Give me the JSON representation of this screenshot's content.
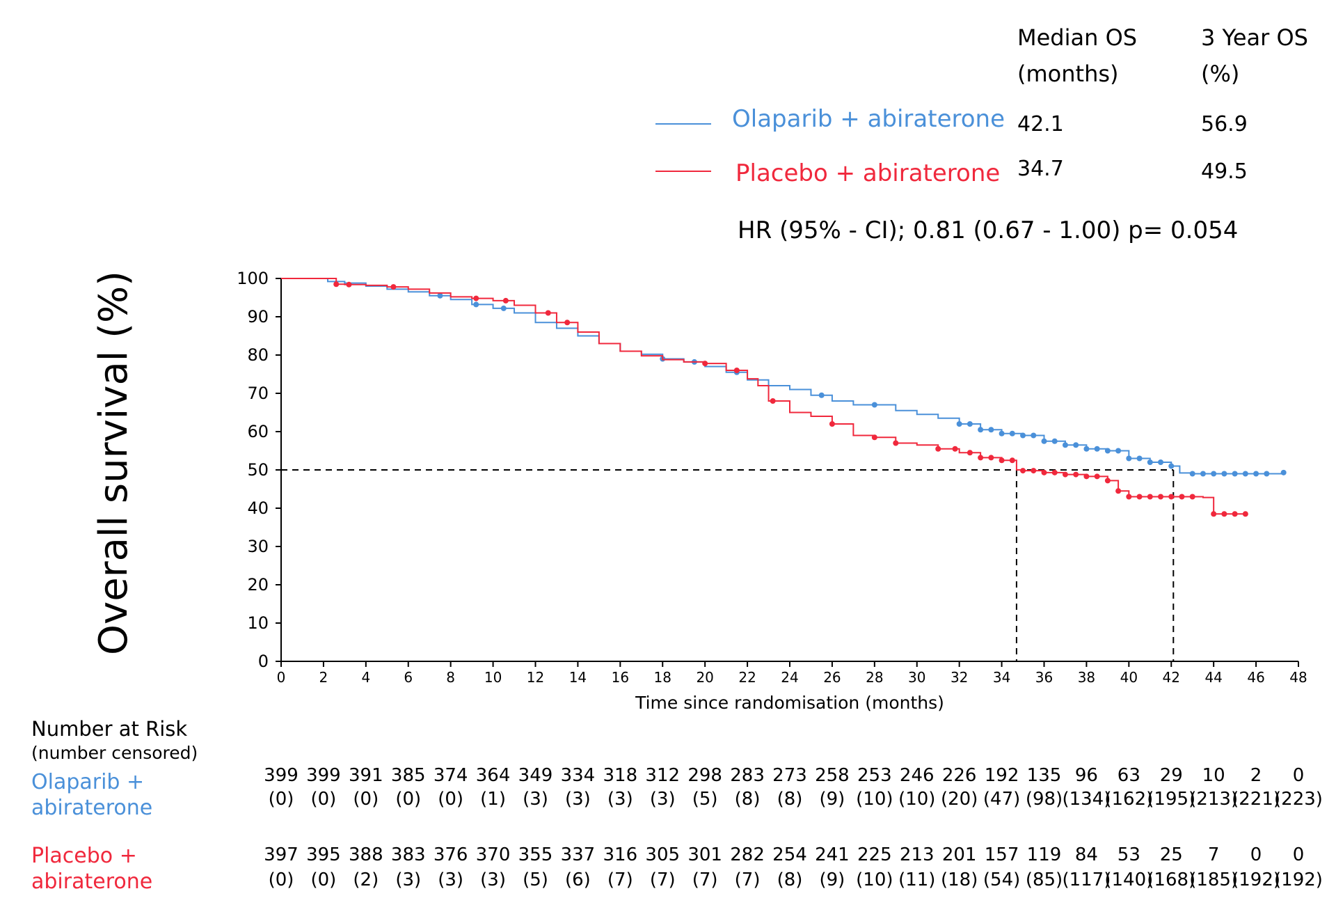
{
  "chart_data": {
    "type": "line",
    "title": "",
    "xlabel": "Time since randomisation (months)",
    "ylabel": "Overall survival (%)",
    "xlim": [
      0,
      48
    ],
    "ylim": [
      0,
      100
    ],
    "x_ticks": [
      "0",
      "2",
      "4",
      "6",
      "8",
      "10",
      "12",
      "14",
      "16",
      "18",
      "20",
      "22",
      "24",
      "26",
      "28",
      "30",
      "32",
      "34",
      "36",
      "38",
      "40",
      "42",
      "44",
      "46",
      "48"
    ],
    "y_ticks": [
      "0",
      "10",
      "20",
      "30",
      "40",
      "50",
      "60",
      "70",
      "80",
      "90",
      "100"
    ],
    "reference_lines": {
      "median_survival_pct": 50,
      "medians_months": [
        34.7,
        42.1
      ],
      "style": "dashed"
    },
    "summary": {
      "header_median": [
        "Median OS",
        "(months)"
      ],
      "header_3yr": [
        "3 Year OS",
        "(%)"
      ],
      "hr_text": "HR (95% - CI); 0.81 (0.67 - 1.00) p= 0.054"
    },
    "series": [
      {
        "name": "Olaparib + abiraterone",
        "color": "#4a90d9",
        "median_os": "42.1",
        "three_year_os": "56.9",
        "x": [
          0,
          2,
          2.2,
          3,
          4,
          5,
          6,
          7,
          8,
          9,
          10,
          11,
          12,
          13,
          14,
          15,
          16,
          17,
          18,
          19,
          20,
          21,
          22,
          23,
          24,
          25,
          26,
          27,
          28,
          29,
          30,
          31,
          32,
          33,
          34,
          35,
          36,
          37,
          38,
          39,
          40,
          41,
          42,
          42.4,
          43,
          44,
          45,
          46,
          47.3
        ],
        "y": [
          100,
          100,
          99.2,
          98.8,
          98,
          97.2,
          96.5,
          95.5,
          94.5,
          93.2,
          92.2,
          91,
          88.5,
          87,
          85,
          83,
          81,
          80.2,
          79,
          78.2,
          77,
          75.5,
          73.5,
          72,
          71,
          69.5,
          68,
          67,
          67,
          65.5,
          64.5,
          63.5,
          62,
          60.5,
          59.5,
          59,
          57.5,
          56.5,
          55.5,
          55,
          53,
          52,
          51,
          49.2,
          49,
          49,
          49,
          49,
          49.3
        ],
        "censor_x": [
          7.5,
          9.2,
          10.5,
          18,
          19.5,
          21.5,
          25.5,
          28,
          32,
          32.5,
          33,
          33.5,
          34,
          34.5,
          35,
          35.5,
          36,
          36.5,
          37,
          37.5,
          38,
          38.5,
          39,
          39.5,
          40,
          40.5,
          41,
          41.5,
          42,
          43,
          43.5,
          44,
          44.5,
          45,
          45.5,
          46,
          46.5,
          47.3
        ],
        "risk_n": [
          "399",
          "399",
          "391",
          "385",
          "374",
          "364",
          "349",
          "334",
          "318",
          "312",
          "298",
          "283",
          "273",
          "258",
          "253",
          "246",
          "226",
          "192",
          "135",
          "96",
          "63",
          "29",
          "10",
          "2",
          "0"
        ],
        "risk_c": [
          "(0)",
          "(0)",
          "(0)",
          "(0)",
          "(0)",
          "(1)",
          "(3)",
          "(3)",
          "(3)",
          "(3)",
          "(5)",
          "(8)",
          "(8)",
          "(9)",
          "(10)",
          "(10)",
          "(20)",
          "(47)",
          "(98)",
          "(134)",
          "(162)",
          "(195)",
          "(213)",
          "(221)",
          "(223)"
        ]
      },
      {
        "name": "Placebo + abiraterone",
        "color": "#f0283c",
        "median_os": "34.7",
        "three_year_os": "49.5",
        "x": [
          0,
          2,
          2.6,
          3,
          4,
          5,
          6,
          7,
          8,
          9,
          10,
          11,
          12,
          13,
          14,
          15,
          16,
          17,
          18,
          19,
          20,
          21,
          22,
          22.5,
          23,
          24,
          25,
          26,
          27,
          28,
          29,
          30,
          31,
          32,
          33,
          34,
          34.7,
          35,
          36,
          37,
          38,
          39,
          39.5,
          40,
          41,
          42,
          43,
          43.5,
          44,
          45,
          45.6
        ],
        "y": [
          100,
          100,
          98.5,
          98.4,
          98.2,
          97.8,
          97.2,
          96.2,
          95.2,
          94.8,
          94.2,
          93,
          91,
          88.5,
          86,
          83,
          81,
          79.8,
          78.8,
          78.2,
          77.8,
          76,
          73.8,
          72,
          68,
          65,
          64,
          62,
          59,
          58.5,
          57,
          56.5,
          55.5,
          54.5,
          53.2,
          52.5,
          50,
          49.8,
          49.3,
          48.8,
          48.3,
          47.2,
          44.5,
          43,
          43,
          43,
          43,
          42.8,
          38.5,
          38.5,
          38.5
        ],
        "censor_x": [
          2.6,
          3.2,
          5.3,
          9.2,
          10.6,
          12.6,
          13.5,
          20,
          21.5,
          23.2,
          26,
          28,
          29,
          31,
          31.8,
          32.5,
          33,
          33.5,
          34,
          34.5,
          35,
          35.5,
          36,
          36.5,
          37,
          37.5,
          38,
          38.5,
          39,
          39.5,
          40,
          40.5,
          41,
          41.5,
          42,
          42.5,
          43,
          44,
          44.5,
          45,
          45.5
        ],
        "risk_n": [
          "397",
          "395",
          "388",
          "383",
          "376",
          "370",
          "355",
          "337",
          "316",
          "305",
          "301",
          "282",
          "254",
          "241",
          "225",
          "213",
          "201",
          "157",
          "119",
          "84",
          "53",
          "25",
          "7",
          "0",
          "0"
        ],
        "risk_c": [
          "(0)",
          "(0)",
          "(2)",
          "(3)",
          "(3)",
          "(3)",
          "(5)",
          "(6)",
          "(7)",
          "(7)",
          "(7)",
          "(7)",
          "(8)",
          "(9)",
          "(10)",
          "(11)",
          "(18)",
          "(54)",
          "(85)",
          "(117)",
          "(140)",
          "(168)",
          "(185)",
          "(192)",
          "(192)"
        ]
      }
    ]
  },
  "risk_table": {
    "title": "Number at Risk",
    "subtitle": "(number censored)",
    "label_olaparib": [
      "Olaparib +",
      "abiraterone"
    ],
    "label_placebo": [
      "Placebo +",
      "abiraterone"
    ]
  }
}
